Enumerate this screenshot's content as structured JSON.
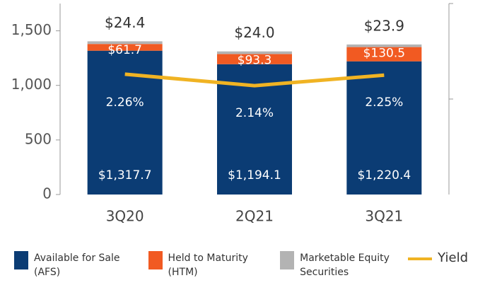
{
  "chart_data": {
    "type": "bar",
    "stacked": true,
    "categories": [
      "3Q20",
      "2Q21",
      "3Q21"
    ],
    "series": [
      {
        "name": "Available for Sale (AFS)",
        "color": "#0b3c74",
        "values": [
          1317.7,
          1194.1,
          1220.4
        ],
        "value_labels": [
          "$1,317.7",
          "$1,194.1",
          "$1,220.4"
        ]
      },
      {
        "name": "Held to Maturity (HTM)",
        "color": "#f15a22",
        "values": [
          61.7,
          93.3,
          130.5
        ],
        "value_labels": [
          "$61.7",
          "$93.3",
          "$130.5"
        ]
      },
      {
        "name": "Marketable Equity Securities",
        "color": "#b3b3b3",
        "values": [
          24.4,
          24.0,
          23.9
        ],
        "value_labels": [
          "$24.4",
          "$24.0",
          "$23.9"
        ]
      },
      {
        "name": "Yield",
        "type": "line",
        "axis": "y2",
        "color": "#f0b323",
        "values": [
          2.26,
          2.14,
          2.25
        ],
        "value_labels": [
          "2.26%",
          "2.14%",
          "2.25%"
        ]
      }
    ],
    "ylim": [
      0,
      1750
    ],
    "yticks": [
      0,
      500,
      {
        "value": 1000,
        "label": "1,000"
      },
      {
        "value": 1500,
        "label": "1,500"
      }
    ],
    "y2lim": [
      1,
      3
    ],
    "y2ticks": [
      2,
      3
    ]
  }
}
